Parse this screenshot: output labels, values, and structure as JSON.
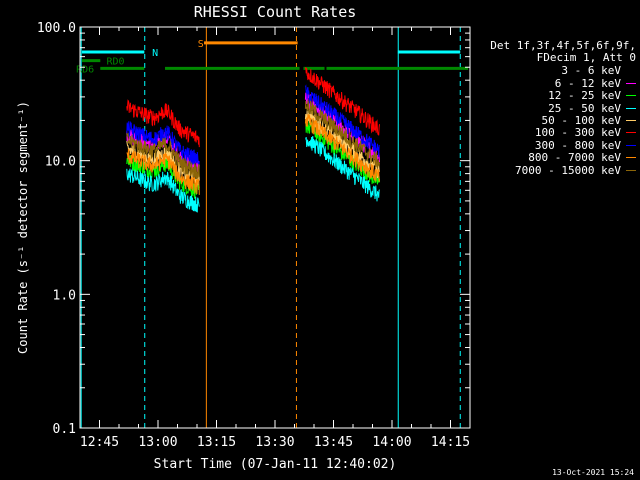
{
  "chart_data": {
    "type": "line",
    "title": "RHESSI Count Rates",
    "xlabel": "Start Time (07-Jan-11 12:40:02)",
    "ylabel": "Count Rate (s⁻¹ detector segment⁻¹)",
    "x_axis": {
      "unit": "minutes since 12:40:02",
      "range": [
        0,
        100
      ],
      "ticks": [
        {
          "label": "12:45",
          "value": 5
        },
        {
          "label": "13:00",
          "value": 20
        },
        {
          "label": "13:15",
          "value": 35
        },
        {
          "label": "13:30",
          "value": 50
        },
        {
          "label": "13:45",
          "value": 65
        },
        {
          "label": "14:00",
          "value": 80
        },
        {
          "label": "14:15",
          "value": 95
        }
      ]
    },
    "y_axis": {
      "scale": "log",
      "range": [
        0.1,
        100
      ],
      "ticks": [
        {
          "label": "0.1",
          "value": 0.1
        },
        {
          "label": "1.0",
          "value": 1
        },
        {
          "label": "10.0",
          "value": 10
        },
        {
          "label": "100.0",
          "value": 100
        }
      ]
    },
    "legend_header": [
      "Det 1f,3f,4f,5f,6f,9f,",
      "FDecim 1, Att 0"
    ],
    "series": [
      {
        "name": "3 - 6 keV",
        "color": "#000000",
        "rel": 1.0
      },
      {
        "name": "6 - 12 keV",
        "color": "#ff00ff",
        "rel": 1.22
      },
      {
        "name": "12 - 25 keV",
        "color": "#00ff00",
        "rel": 0.78
      },
      {
        "name": "25 - 50 keV",
        "color": "#00ffff",
        "rel": 0.62
      },
      {
        "name": "50 - 100 keV",
        "color": "#ffcc66",
        "rel": 0.95
      },
      {
        "name": "100 - 300 keV",
        "color": "#ff0000",
        "rel": 1.95
      },
      {
        "name": "300 - 800 keV",
        "color": "#0000ff",
        "rel": 1.35
      },
      {
        "name": "800 - 7000 keV",
        "color": "#ff8800",
        "rel": 0.85
      },
      {
        "name": "7000 - 15000 keV",
        "color": "#8b6508",
        "rel": 1.1
      }
    ],
    "data_segments": [
      {
        "start": 12.0,
        "end": 30.6,
        "base_start": 13.0,
        "base_end": 7.5
      },
      {
        "start": 57.8,
        "end": 76.8,
        "base_start": 24.0,
        "base_end": 8.8
      }
    ],
    "state_bars": [
      {
        "label": "",
        "color": "#00ffff",
        "y": 65,
        "segments": [
          [
            0.5,
            16.5
          ],
          [
            81.5,
            97.5
          ]
        ]
      },
      {
        "label": "N",
        "color": "#00ffff",
        "y": 65,
        "label_at": 18.5,
        "segments": []
      },
      {
        "label": "RD0",
        "color": "#008800",
        "y": 56,
        "label_at": 6.8,
        "segments": [
          [
            0.5,
            5.2
          ]
        ]
      },
      {
        "label": "RD6",
        "color": "#008800",
        "y": 49,
        "label_at": -1,
        "segments": [
          [
            5.2,
            16.5
          ],
          [
            21.8,
            56.3
          ],
          [
            57.3,
            62.7
          ],
          [
            63.2,
            99.5
          ]
        ]
      },
      {
        "label": "S",
        "color": "#ff8800",
        "y": 76,
        "label_at": 30.2,
        "segments": [
          [
            31.8,
            55.8
          ]
        ]
      }
    ],
    "vlines": [
      {
        "x": 0.3,
        "color": "#00ffff",
        "style": "solid"
      },
      {
        "x": 16.6,
        "color": "#00ffff",
        "style": "dashed"
      },
      {
        "x": 32.4,
        "color": "#ff8800",
        "style": "solid"
      },
      {
        "x": 55.5,
        "color": "#ff8800",
        "style": "dashed"
      },
      {
        "x": 81.6,
        "color": "#00ffff",
        "style": "solid"
      },
      {
        "x": 97.5,
        "color": "#00ffff",
        "style": "dashed"
      }
    ],
    "grid": false
  },
  "timestamp": "13-Oct-2021 15:24"
}
